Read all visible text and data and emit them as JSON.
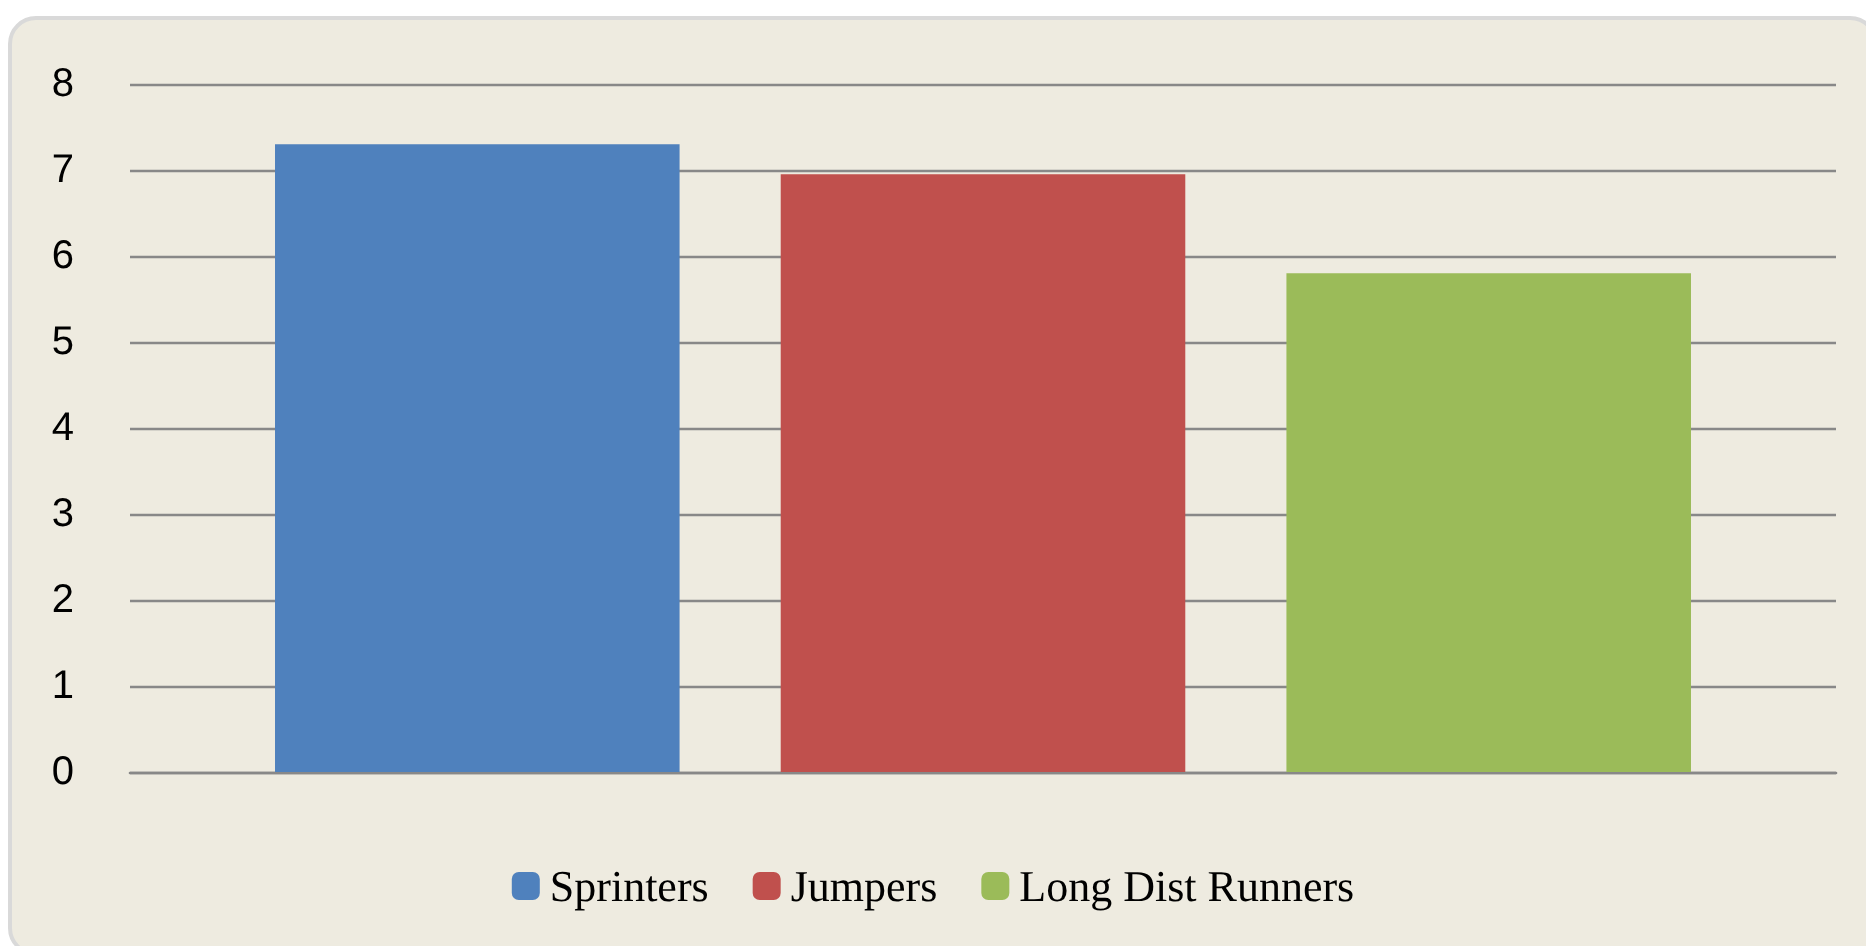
{
  "chart_data": {
    "type": "bar",
    "categories": [
      null
    ],
    "series": [
      {
        "name": "Sprinters",
        "color": "#4f81bd",
        "values": [
          7.3
        ]
      },
      {
        "name": "Jumpers",
        "color": "#c0504d",
        "values": [
          6.95
        ]
      },
      {
        "name": "Long Dist Runners",
        "color": "#9bbb59",
        "values": [
          5.8
        ]
      }
    ],
    "ylim": [
      0,
      8
    ],
    "yticks": [
      0,
      1,
      2,
      3,
      4,
      5,
      6,
      7,
      8
    ],
    "grid": "y",
    "legend": "bottom"
  }
}
